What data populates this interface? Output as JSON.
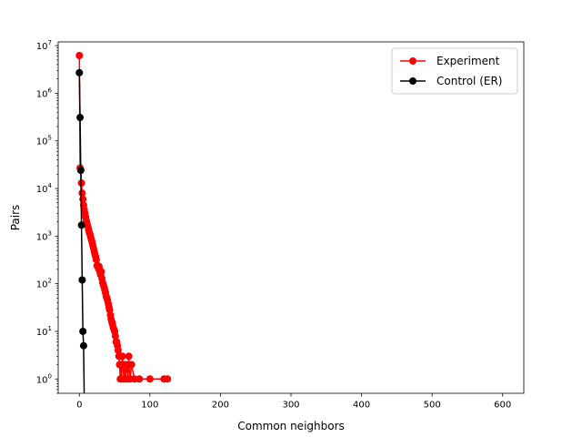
{
  "chart_data": {
    "type": "line",
    "title": "",
    "xlabel": "Common neighbors",
    "ylabel": "Pairs",
    "xlim": [
      -30,
      630
    ],
    "ylim": [
      0.5,
      12000000
    ],
    "yscale": "log",
    "xticks": [
      0,
      100,
      200,
      300,
      400,
      500,
      600
    ],
    "yticks": [
      1,
      10,
      100,
      1000,
      10000,
      100000,
      1000000,
      10000000
    ],
    "ytick_labels": [
      {
        "base": "10",
        "exp": "0"
      },
      {
        "base": "10",
        "exp": "1"
      },
      {
        "base": "10",
        "exp": "2"
      },
      {
        "base": "10",
        "exp": "3"
      },
      {
        "base": "10",
        "exp": "4"
      },
      {
        "base": "10",
        "exp": "5"
      },
      {
        "base": "10",
        "exp": "6"
      },
      {
        "base": "10",
        "exp": "7"
      }
    ],
    "legend": {
      "position": "top-right"
    },
    "grid": false,
    "series": [
      {
        "name": "Experiment",
        "color": "#ff0000",
        "marker": "circle",
        "points": [
          [
            0,
            6200000
          ],
          [
            1,
            27000
          ],
          [
            2,
            25000
          ],
          [
            3,
            13000
          ],
          [
            4,
            8000
          ],
          [
            5,
            6000
          ],
          [
            6,
            4500
          ],
          [
            7,
            3600
          ],
          [
            8,
            3000
          ],
          [
            9,
            2500
          ],
          [
            10,
            2100
          ],
          [
            11,
            1800
          ],
          [
            12,
            1600
          ],
          [
            13,
            1400
          ],
          [
            14,
            1200
          ],
          [
            15,
            1100
          ],
          [
            16,
            950
          ],
          [
            17,
            850
          ],
          [
            18,
            750
          ],
          [
            19,
            650
          ],
          [
            20,
            560
          ],
          [
            21,
            480
          ],
          [
            22,
            420
          ],
          [
            23,
            370
          ],
          [
            24,
            320
          ],
          [
            25,
            240
          ],
          [
            26,
            240
          ],
          [
            27,
            210
          ],
          [
            28,
            230
          ],
          [
            29,
            180
          ],
          [
            30,
            155
          ],
          [
            31,
            180
          ],
          [
            32,
            130
          ],
          [
            33,
            105
          ],
          [
            34,
            95
          ],
          [
            35,
            85
          ],
          [
            36,
            75
          ],
          [
            37,
            65
          ],
          [
            38,
            55
          ],
          [
            39,
            50
          ],
          [
            40,
            45
          ],
          [
            41,
            38
          ],
          [
            42,
            32
          ],
          [
            43,
            28
          ],
          [
            44,
            22
          ],
          [
            45,
            18
          ],
          [
            46,
            16
          ],
          [
            47,
            14
          ],
          [
            48,
            12
          ],
          [
            49,
            11
          ],
          [
            50,
            10
          ],
          [
            51,
            8
          ],
          [
            52,
            6
          ],
          [
            53,
            6
          ],
          [
            54,
            5
          ],
          [
            55,
            4
          ],
          [
            56,
            3
          ],
          [
            57,
            2
          ],
          [
            58,
            1
          ],
          [
            59,
            2
          ],
          [
            60,
            1
          ],
          [
            61,
            3
          ],
          [
            62,
            2
          ],
          [
            63,
            1
          ],
          [
            64,
            2
          ],
          [
            65,
            1
          ],
          [
            67,
            2
          ],
          [
            69,
            1
          ],
          [
            70,
            3
          ],
          [
            72,
            1
          ],
          [
            74,
            2
          ],
          [
            78,
            1
          ],
          [
            85,
            1
          ],
          [
            100,
            1
          ],
          [
            120,
            1
          ],
          [
            125,
            1
          ]
        ]
      },
      {
        "name": "Control (ER)",
        "color": "#000000",
        "marker": "circle",
        "points": [
          [
            0,
            2700000
          ],
          [
            1,
            310000
          ],
          [
            2,
            24000
          ],
          [
            3,
            1700
          ],
          [
            4,
            120
          ],
          [
            5,
            10
          ],
          [
            6,
            5
          ],
          [
            7,
            0.3
          ]
        ]
      }
    ]
  }
}
